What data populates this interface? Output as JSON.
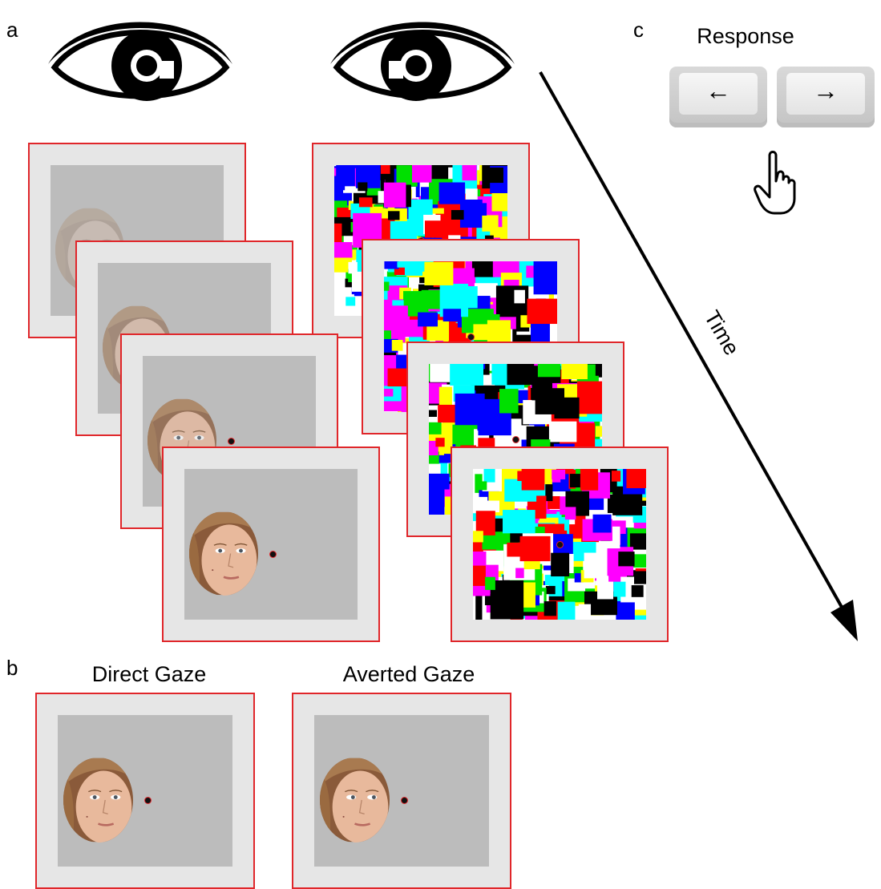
{
  "panels": {
    "a": "a",
    "b": "b",
    "c": "c"
  },
  "response": {
    "title": "Response",
    "keys": [
      "←",
      "→"
    ]
  },
  "time_label": "Time",
  "gaze": {
    "direct": "Direct Gaze",
    "averted": "Averted Gaze"
  },
  "colors": {
    "frame_border": "#e0262a",
    "inner_gray": "#bcbcbc",
    "mondrian": [
      "#ff0000",
      "#00e000",
      "#0000ff",
      "#00ffff",
      "#ff00ff",
      "#ffff00",
      "#ffffff",
      "#000000"
    ]
  },
  "face_contrast_steps": [
    0.25,
    0.5,
    0.75,
    1.0
  ]
}
